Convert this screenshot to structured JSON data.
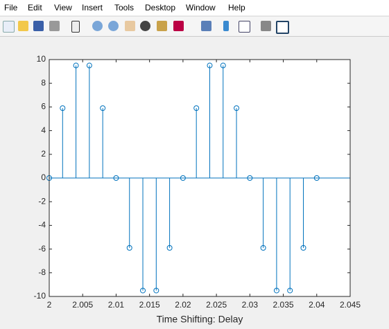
{
  "menu": [
    "File",
    "Edit",
    "View",
    "Insert",
    "Tools",
    "Desktop",
    "Window",
    "Help"
  ],
  "chart_data": {
    "type": "stem",
    "xlabel": "Time Shifting: Delay",
    "x": [
      2,
      2.002,
      2.004,
      2.006,
      2.008,
      2.01,
      2.012,
      2.014,
      2.016,
      2.018,
      2.02,
      2.022,
      2.024,
      2.026,
      2.028,
      2.03,
      2.032,
      2.034,
      2.036,
      2.038,
      2.04
    ],
    "values": [
      0,
      5.9,
      9.5,
      9.5,
      5.9,
      0,
      -5.9,
      -9.5,
      -9.5,
      -5.9,
      0,
      5.9,
      9.5,
      9.5,
      5.9,
      0,
      -5.9,
      -9.5,
      -9.5,
      -5.9,
      0
    ],
    "color": "#0072bd",
    "xlim": [
      2,
      2.045
    ],
    "xticks": [
      2,
      2.005,
      2.01,
      2.015,
      2.02,
      2.025,
      2.03,
      2.035,
      2.04,
      2.045
    ],
    "ylim": [
      -10,
      10
    ],
    "yticks": [
      -10,
      -8,
      -6,
      -4,
      -2,
      0,
      2,
      4,
      6,
      8,
      10
    ]
  }
}
